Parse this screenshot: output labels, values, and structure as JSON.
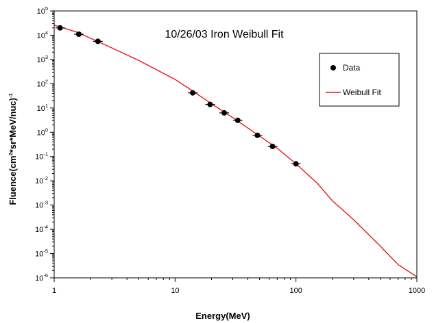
{
  "chart_data": {
    "type": "scatter",
    "title": "10/26/03 Iron Weibull Fit",
    "xlabel": "Energy(MeV)",
    "ylabel_parts": {
      "p1": "Fluence(cm",
      "s1": "2",
      "p2": "*sr*MeV/nuc)",
      "s2": "-1"
    },
    "x_scale": "log",
    "y_scale": "log",
    "xlim": [
      1,
      1000
    ],
    "ylim": [
      1e-06,
      100000
    ],
    "x_ticks": [
      {
        "label": "1",
        "value": 1
      },
      {
        "label": "10",
        "value": 10
      },
      {
        "label": "100",
        "value": 100
      },
      {
        "label": "1000",
        "value": 1000
      }
    ],
    "y_ticks": [
      {
        "base": "10",
        "exp": "5",
        "value": 100000
      },
      {
        "base": "10",
        "exp": "4",
        "value": 10000
      },
      {
        "base": "10",
        "exp": "3",
        "value": 1000
      },
      {
        "base": "10",
        "exp": "2",
        "value": 100
      },
      {
        "base": "10",
        "exp": "1",
        "value": 10
      },
      {
        "base": "10",
        "exp": "0",
        "value": 1
      },
      {
        "base": "10",
        "exp": "-1",
        "value": 0.1
      },
      {
        "base": "10",
        "exp": "-2",
        "value": 0.01
      },
      {
        "base": "10",
        "exp": "-3",
        "value": 0.001
      },
      {
        "base": "10",
        "exp": "-4",
        "value": 0.0001
      },
      {
        "base": "10",
        "exp": "-5",
        "value": 1e-05
      },
      {
        "base": "10",
        "exp": "-6",
        "value": 1e-06
      }
    ],
    "grid": false,
    "legend": {
      "position": "top-right",
      "entries": [
        {
          "label": "Data",
          "marker": "circle",
          "color": "#000000"
        },
        {
          "label": "Weibull Fit",
          "marker": "line",
          "color": "#e8141c"
        }
      ]
    },
    "series": [
      {
        "name": "Data",
        "kind": "points",
        "color": "#000000",
        "x": [
          1.12,
          1.6,
          2.3,
          14,
          19.5,
          25.5,
          33,
          48,
          64,
          100
        ],
        "y": [
          20000,
          11000,
          5600,
          42,
          14,
          6.3,
          3.1,
          0.75,
          0.26,
          0.05
        ]
      },
      {
        "name": "Weibull Fit",
        "kind": "line",
        "color": "#e8141c",
        "x": [
          1,
          1.5,
          2,
          3,
          5,
          7,
          10,
          14,
          20,
          30,
          50,
          70,
          100,
          150,
          200,
          300,
          500,
          700,
          1000
        ],
        "y": [
          26000,
          14000,
          7500,
          3000,
          920,
          380,
          150,
          50,
          15,
          4,
          0.7,
          0.22,
          0.05,
          0.008,
          0.0015,
          0.00025,
          2e-05,
          3.5e-06,
          1.1e-06
        ]
      }
    ]
  }
}
